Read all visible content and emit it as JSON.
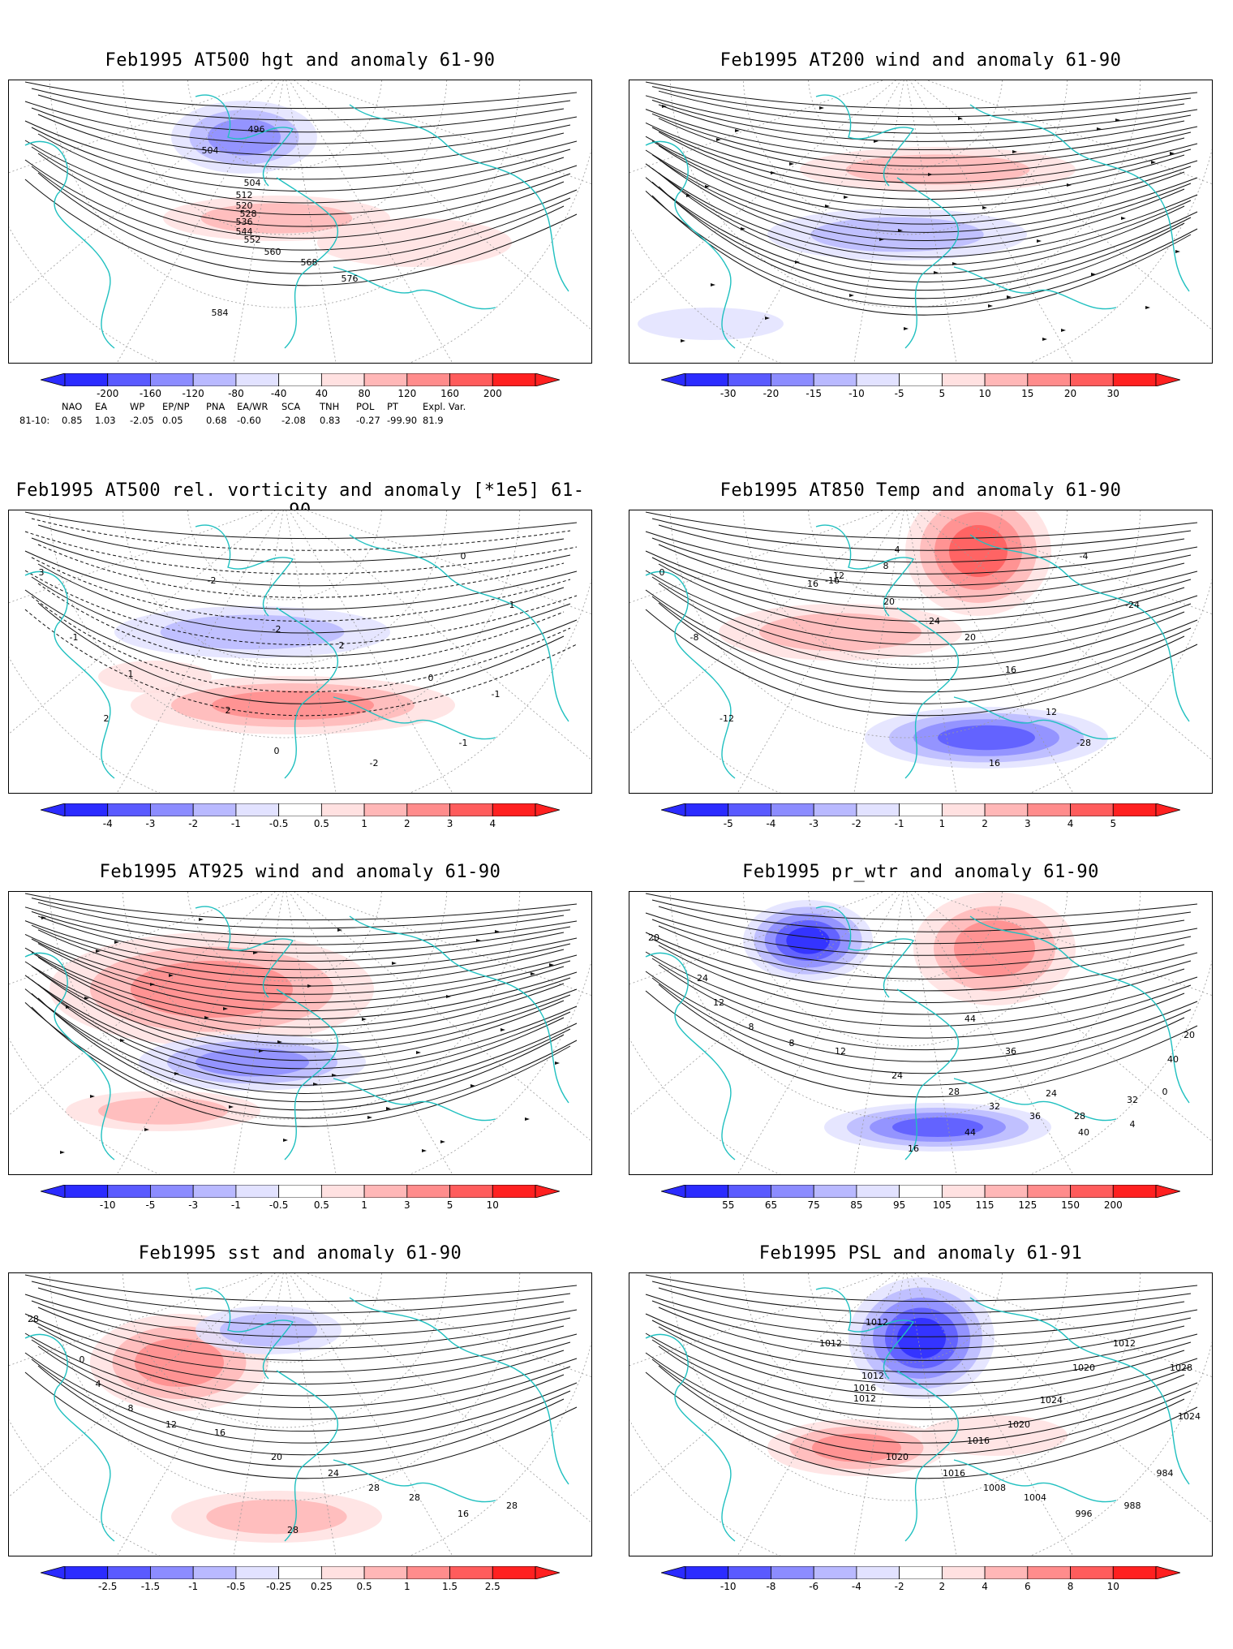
{
  "colors": {
    "coast": "#20c0c0",
    "contour": "#111111",
    "grid": "#9a9a9a",
    "blue_dark": "#2b2bff",
    "red_dark": "#ff2020"
  },
  "panels": [
    {
      "id": "hgt500",
      "title": "Feb1995 AT500 hgt and anomaly 61-90",
      "ticks": [
        "-200",
        "-160",
        "-120",
        "-80",
        "-40",
        "40",
        "80",
        "120",
        "160",
        "200"
      ],
      "contour_labels": [
        "496",
        "504",
        "504",
        "512",
        "520",
        "528",
        "536",
        "544",
        "552",
        "560",
        "568",
        "576",
        "584"
      ],
      "anomaly_blobs": [
        {
          "sign": "neg",
          "level": 3
        },
        {
          "sign": "pos",
          "level": 2
        },
        {
          "sign": "pos",
          "level": 1
        }
      ]
    },
    {
      "id": "wind200",
      "title": "Feb1995 AT200 wind and anomaly 61-90",
      "ticks": [
        "-30",
        "-20",
        "-15",
        "-10",
        "-5",
        "5",
        "10",
        "15",
        "20",
        "30"
      ],
      "contour_labels": [],
      "anomaly_blobs": [
        {
          "sign": "neg",
          "level": 2
        },
        {
          "sign": "pos",
          "level": 2
        },
        {
          "sign": "neg",
          "level": 1
        }
      ]
    },
    {
      "id": "vort500",
      "title": "Feb1995 AT500 rel. vorticity and anomaly [*1e5] 61-90",
      "ticks": [
        "-4",
        "-3",
        "-2",
        "-1",
        "-0.5",
        "0.5",
        "1",
        "2",
        "3",
        "4"
      ],
      "contour_labels": [
        "-2",
        "2",
        "0",
        "-1",
        "1",
        "2",
        "0",
        "-2",
        "-1",
        "1",
        "-2",
        "2",
        "-1",
        "0",
        "3"
      ],
      "anomaly_blobs": [
        {
          "sign": "pos",
          "level": 3
        },
        {
          "sign": "neg",
          "level": 2
        },
        {
          "sign": "pos",
          "level": 1
        }
      ]
    },
    {
      "id": "temp850",
      "title": "Feb1995 AT850 Temp and anomaly 61-90",
      "ticks": [
        "-5",
        "-4",
        "-3",
        "-2",
        "-1",
        "1",
        "2",
        "3",
        "4",
        "5"
      ],
      "contour_labels": [
        "16",
        "-28",
        "-24",
        "-16",
        "-12",
        "-8",
        "-4",
        "0",
        "4",
        "8",
        "12",
        "16",
        "20",
        "24",
        "20",
        "16",
        "12"
      ],
      "anomaly_blobs": [
        {
          "sign": "pos",
          "level": 4
        },
        {
          "sign": "neg",
          "level": 4
        },
        {
          "sign": "pos",
          "level": 2
        }
      ]
    },
    {
      "id": "wind925",
      "title": "Feb1995 AT925 wind and anomaly 61-90",
      "ticks": [
        "-10",
        "-5",
        "-3",
        "-1",
        "-0.5",
        "0.5",
        "1",
        "3",
        "5",
        "10"
      ],
      "contour_labels": [],
      "anomaly_blobs": [
        {
          "sign": "pos",
          "level": 3
        },
        {
          "sign": "neg",
          "level": 3
        },
        {
          "sign": "pos",
          "level": 2
        }
      ]
    },
    {
      "id": "prwtr",
      "title": "Feb1995 pr_wtr and anomaly 61-90",
      "ticks": [
        "55",
        "65",
        "75",
        "85",
        "95",
        "105",
        "115",
        "125",
        "150",
        "200"
      ],
      "contour_labels": [
        "44",
        "36",
        "24",
        "28",
        "32",
        "40",
        "44",
        "16",
        "20",
        "24",
        "12",
        "8",
        "8",
        "12",
        "24",
        "28",
        "32",
        "36",
        "40",
        "4",
        "0",
        "20"
      ],
      "anomaly_blobs": [
        {
          "sign": "neg",
          "level": 5
        },
        {
          "sign": "pos",
          "level": 3
        },
        {
          "sign": "neg",
          "level": 4
        }
      ]
    },
    {
      "id": "sst",
      "title": "Feb1995 sst and anomaly 61-90",
      "ticks": [
        "-2.5",
        "-1.5",
        "-1",
        "-0.5",
        "-0.25",
        "0.25",
        "0.5",
        "1",
        "1.5",
        "2.5"
      ],
      "contour_labels": [
        "28",
        "28",
        "0",
        "4",
        "8",
        "12",
        "16",
        "20",
        "24",
        "28",
        "28",
        "16",
        "28"
      ],
      "anomaly_blobs": [
        {
          "sign": "pos",
          "level": 3
        },
        {
          "sign": "neg",
          "level": 2
        },
        {
          "sign": "pos",
          "level": 2
        }
      ]
    },
    {
      "id": "psl",
      "title": "Feb1995 PSL and anomaly 61-91",
      "ticks": [
        "-10",
        "-8",
        "-6",
        "-4",
        "-2",
        "2",
        "4",
        "6",
        "8",
        "10"
      ],
      "contour_labels": [
        "1020",
        "1016",
        "1008",
        "1004",
        "996",
        "988",
        "984",
        "1024",
        "1028",
        "1012",
        "1020",
        "1024",
        "1020",
        "1016",
        "1012",
        "1012",
        "1012",
        "1016",
        "1012"
      ],
      "anomaly_blobs": [
        {
          "sign": "neg",
          "level": 5
        },
        {
          "sign": "pos",
          "level": 3
        },
        {
          "sign": "pos",
          "level": 1
        }
      ]
    }
  ],
  "teleconnections": {
    "headers": [
      "NAO",
      "EA",
      "WP",
      "EP/NP",
      "PNA",
      "EA/WR",
      "SCA",
      "TNH",
      "POL",
      "PT",
      "Expl. Var."
    ],
    "period_label": "81-10:",
    "values": [
      "0.85",
      "1.03",
      "-2.05",
      "0.05",
      "0.68",
      "-0.60",
      "-2.08",
      "0.83",
      "-0.27",
      "-99.90",
      "81.9"
    ]
  }
}
